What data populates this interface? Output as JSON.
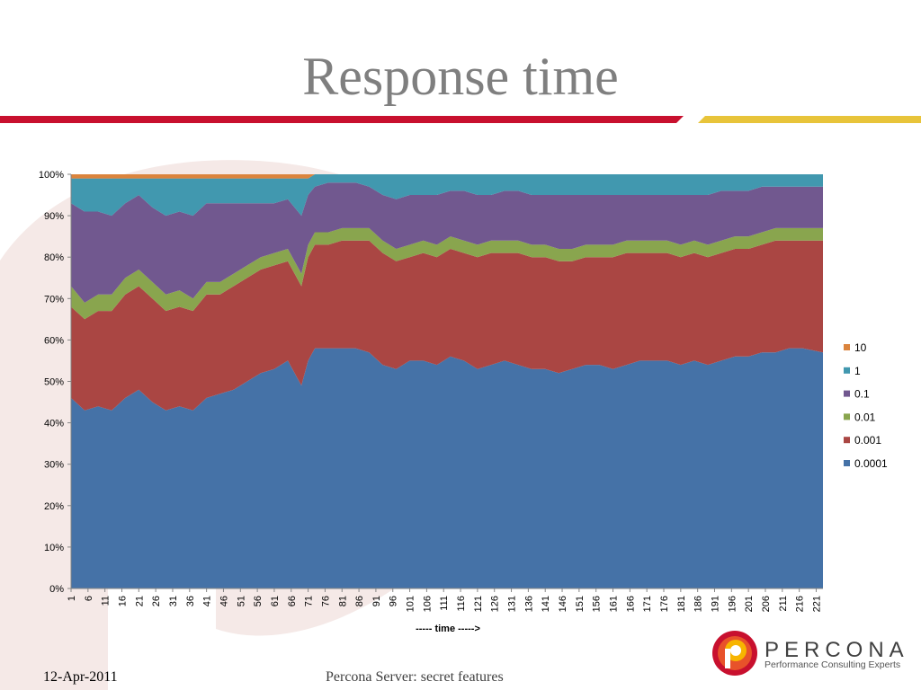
{
  "slide": {
    "title": "Response time",
    "footer_date": "12-Apr-2011",
    "footer_center": "Percona Server: secret features"
  },
  "logo": {
    "name": "PERCONA",
    "tagline": "Performance Consulting Experts",
    "icon": "percona-logo-icon",
    "colors": [
      "#e8522a",
      "#f7b500",
      "#c8102e"
    ]
  },
  "theme": {
    "title_color": "#7f7f7f",
    "rule_red": "#c8102e",
    "rule_yellow": "#e8c43a"
  },
  "chart_data": {
    "type": "area",
    "stacked": "percent",
    "x_start": 1,
    "x_end": 223,
    "x_tick_labels": [
      "1",
      "6",
      "11",
      "16",
      "21",
      "26",
      "31",
      "36",
      "41",
      "46",
      "51",
      "56",
      "61",
      "66",
      "71",
      "76",
      "81",
      "86",
      "91",
      "96",
      "101",
      "106",
      "111",
      "116",
      "121",
      "126",
      "131",
      "136",
      "141",
      "146",
      "151",
      "156",
      "161",
      "166",
      "171",
      "176",
      "181",
      "186",
      "191",
      "196",
      "201",
      "206",
      "211",
      "216",
      "221"
    ],
    "xlabel": "----- time ----->",
    "ylabel": "",
    "ylim": [
      0,
      1
    ],
    "y_tick_labels": [
      "0%",
      "10%",
      "20%",
      "30%",
      "40%",
      "50%",
      "60%",
      "70%",
      "80%",
      "90%",
      "100%"
    ],
    "legend_position": "right",
    "series": [
      {
        "name": "0.0001",
        "color": "#4572a7",
        "x": [
          1,
          5,
          9,
          13,
          17,
          21,
          25,
          29,
          33,
          37,
          41,
          45,
          49,
          53,
          57,
          61,
          65,
          69,
          71,
          73,
          77,
          81,
          85,
          89,
          93,
          97,
          101,
          105,
          109,
          113,
          117,
          121,
          125,
          129,
          133,
          137,
          141,
          145,
          149,
          153,
          157,
          161,
          165,
          169,
          173,
          177,
          181,
          185,
          189,
          193,
          197,
          201,
          205,
          209,
          213,
          217,
          223
        ],
        "y": [
          46,
          43,
          44,
          43,
          46,
          48,
          45,
          43,
          44,
          43,
          46,
          47,
          48,
          50,
          52,
          53,
          55,
          49,
          55,
          58,
          58,
          58,
          58,
          57,
          54,
          53,
          55,
          55,
          54,
          56,
          55,
          53,
          54,
          55,
          54,
          53,
          53,
          52,
          53,
          54,
          54,
          53,
          54,
          55,
          55,
          55,
          54,
          55,
          54,
          55,
          56,
          56,
          57,
          57,
          58,
          58,
          57
        ]
      },
      {
        "name": "0.001",
        "color": "#aa4643",
        "x": [
          1,
          5,
          9,
          13,
          17,
          21,
          25,
          29,
          33,
          37,
          41,
          45,
          49,
          53,
          57,
          61,
          65,
          69,
          71,
          73,
          77,
          81,
          85,
          89,
          93,
          97,
          101,
          105,
          109,
          113,
          117,
          121,
          125,
          129,
          133,
          137,
          141,
          145,
          149,
          153,
          157,
          161,
          165,
          169,
          173,
          177,
          181,
          185,
          189,
          193,
          197,
          201,
          205,
          209,
          213,
          217,
          223
        ],
        "y": [
          22,
          22,
          23,
          24,
          25,
          25,
          25,
          24,
          24,
          24,
          25,
          24,
          25,
          25,
          25,
          25,
          24,
          24,
          25,
          25,
          25,
          26,
          26,
          27,
          27,
          26,
          25,
          26,
          26,
          26,
          26,
          27,
          27,
          26,
          27,
          27,
          27,
          27,
          26,
          26,
          26,
          27,
          27,
          26,
          26,
          26,
          26,
          26,
          26,
          26,
          26,
          26,
          26,
          27,
          26,
          26,
          27
        ]
      },
      {
        "name": "0.01",
        "color": "#89a54e",
        "x": [
          1,
          5,
          9,
          13,
          17,
          21,
          25,
          29,
          33,
          37,
          41,
          45,
          49,
          53,
          57,
          61,
          65,
          69,
          71,
          73,
          77,
          81,
          85,
          89,
          93,
          97,
          101,
          105,
          109,
          113,
          117,
          121,
          125,
          129,
          133,
          137,
          141,
          145,
          149,
          153,
          157,
          161,
          165,
          169,
          173,
          177,
          181,
          185,
          189,
          193,
          197,
          201,
          205,
          209,
          213,
          217,
          223
        ],
        "y": [
          5,
          4,
          4,
          4,
          4,
          4,
          4,
          4,
          4,
          3,
          3,
          3,
          3,
          3,
          3,
          3,
          3,
          3,
          3,
          3,
          3,
          3,
          3,
          3,
          3,
          3,
          3,
          3,
          3,
          3,
          3,
          3,
          3,
          3,
          3,
          3,
          3,
          3,
          3,
          3,
          3,
          3,
          3,
          3,
          3,
          3,
          3,
          3,
          3,
          3,
          3,
          3,
          3,
          3,
          3,
          3,
          3
        ]
      },
      {
        "name": "0.1",
        "color": "#71588f",
        "x": [
          1,
          5,
          9,
          13,
          17,
          21,
          25,
          29,
          33,
          37,
          41,
          45,
          49,
          53,
          57,
          61,
          65,
          69,
          71,
          73,
          77,
          81,
          85,
          89,
          93,
          97,
          101,
          105,
          109,
          113,
          117,
          121,
          125,
          129,
          133,
          137,
          141,
          145,
          149,
          153,
          157,
          161,
          165,
          169,
          173,
          177,
          181,
          185,
          189,
          193,
          197,
          201,
          205,
          209,
          213,
          217,
          223
        ],
        "y": [
          20,
          22,
          20,
          19,
          18,
          18,
          18,
          19,
          19,
          20,
          19,
          19,
          17,
          15,
          13,
          12,
          12,
          14,
          12,
          11,
          12,
          11,
          11,
          10,
          11,
          12,
          12,
          11,
          12,
          11,
          12,
          12,
          11,
          12,
          12,
          12,
          12,
          13,
          13,
          12,
          12,
          12,
          11,
          11,
          11,
          11,
          12,
          11,
          12,
          12,
          11,
          11,
          11,
          10,
          10,
          10,
          10
        ]
      },
      {
        "name": "1",
        "color": "#4198af",
        "x": [
          1,
          5,
          9,
          13,
          17,
          21,
          25,
          29,
          33,
          37,
          41,
          45,
          49,
          53,
          57,
          61,
          65,
          69,
          71,
          73,
          77,
          81,
          85,
          89,
          93,
          97,
          101,
          105,
          109,
          113,
          117,
          121,
          125,
          129,
          133,
          137,
          141,
          145,
          149,
          153,
          157,
          161,
          165,
          169,
          173,
          177,
          181,
          185,
          189,
          193,
          197,
          201,
          205,
          209,
          213,
          217,
          223
        ],
        "y": [
          6,
          8,
          8,
          9,
          6,
          4,
          7,
          9,
          8,
          9,
          6,
          6,
          6,
          6,
          6,
          6,
          5,
          9,
          4,
          3,
          2,
          2,
          2,
          3,
          5,
          6,
          5,
          5,
          5,
          4,
          4,
          5,
          5,
          4,
          4,
          5,
          5,
          5,
          5,
          5,
          5,
          5,
          5,
          5,
          5,
          5,
          5,
          5,
          5,
          4,
          4,
          4,
          3,
          3,
          3,
          3,
          3
        ]
      },
      {
        "name": "10",
        "color": "#db843d",
        "x": [
          1,
          5,
          9,
          13,
          17,
          21,
          25,
          29,
          33,
          37,
          41,
          45,
          49,
          53,
          57,
          61,
          65,
          69,
          71,
          73,
          77,
          81,
          85,
          89,
          93,
          97,
          101,
          105,
          109,
          113,
          117,
          121,
          125,
          129,
          133,
          137,
          141,
          145,
          149,
          153,
          157,
          161,
          165,
          169,
          173,
          177,
          181,
          185,
          189,
          193,
          197,
          201,
          205,
          209,
          213,
          217,
          223
        ],
        "y": [
          1,
          1,
          1,
          1,
          1,
          1,
          1,
          1,
          1,
          1,
          1,
          1,
          1,
          1,
          1,
          1,
          1,
          1,
          1,
          0,
          0,
          0,
          0,
          0,
          0,
          0,
          0,
          0,
          0,
          0,
          0,
          0,
          0,
          0,
          0,
          0,
          0,
          0,
          0,
          0,
          0,
          0,
          0,
          0,
          0,
          0,
          0,
          0,
          0,
          0,
          0,
          0,
          0,
          0,
          0,
          0,
          0
        ]
      }
    ]
  }
}
